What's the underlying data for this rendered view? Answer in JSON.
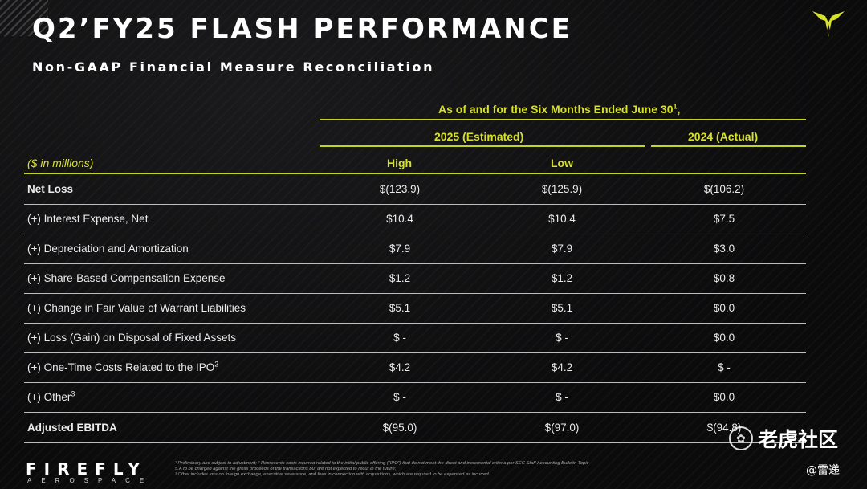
{
  "header": {
    "title": "Q2’FY25 FLASH PERFORMANCE",
    "subtitle": "Non-GAAP Financial Measure Reconciliation",
    "logo": "firefly-logo-icon"
  },
  "table": {
    "period_header": "As of and for the Six Months Ended June 30",
    "period_sup": "1",
    "group_2025": "2025 (Estimated)",
    "group_2024": "2024 (Actual)",
    "units": "($ in millions)",
    "col_high": "High",
    "col_low": "Low",
    "rows": [
      {
        "label": "Net Loss",
        "sup": "",
        "high": "$(123.9)",
        "low": "$(125.9)",
        "actual": "$(106.2)"
      },
      {
        "label": "(+) Interest Expense, Net",
        "sup": "",
        "high": "$10.4",
        "low": "$10.4",
        "actual": "$7.5"
      },
      {
        "label": "(+) Depreciation and Amortization",
        "sup": "",
        "high": "$7.9",
        "low": "$7.9",
        "actual": "$3.0"
      },
      {
        "label": "(+) Share-Based Compensation Expense",
        "sup": "",
        "high": "$1.2",
        "low": "$1.2",
        "actual": "$0.8"
      },
      {
        "label": "(+) Change in Fair Value of Warrant Liabilities",
        "sup": "",
        "high": "$5.1",
        "low": "$5.1",
        "actual": "$0.0"
      },
      {
        "label": "(+) Loss (Gain) on Disposal of Fixed Assets",
        "sup": "",
        "high": "$ -",
        "low": "$ -",
        "actual": "$0.0"
      },
      {
        "label": "(+) One-Time Costs Related to the IPO",
        "sup": "2",
        "high": "$4.2",
        "low": "$4.2",
        "actual": "$ -"
      },
      {
        "label": "(+) Other",
        "sup": "3",
        "high": "$ -",
        "low": "$ -",
        "actual": "$0.0"
      },
      {
        "label": "Adjusted EBITDA",
        "sup": "",
        "high": "$(95.0)",
        "low": "$(97.0)",
        "actual": "$(94.8)"
      }
    ]
  },
  "footer": {
    "brand": "FIREFLY",
    "brand_sub": "AEROSPACE",
    "footnote_1": "¹ Preliminary and subject to adjustment; ² Represents costs incurred related to the initial public offering (“IPO”) that do not meet the direct and incremental criteria per SEC Staff Accounting Bulletin Topic 5.A to be charged against the gross proceeds of the transactions but are not expected to recur in the future;",
    "footnote_2": "³ Other includes loss on foreign exchange, executive severance, and fees in connection with acquisitions, which are required to be expensed as incurred."
  },
  "watermark": {
    "text": "老虎社区",
    "handle": "@雷递",
    "icon": "tiger-community-icon"
  },
  "colors": {
    "accent": "#d8e12a",
    "background": "#0b0b0c",
    "text": "#ececec"
  }
}
